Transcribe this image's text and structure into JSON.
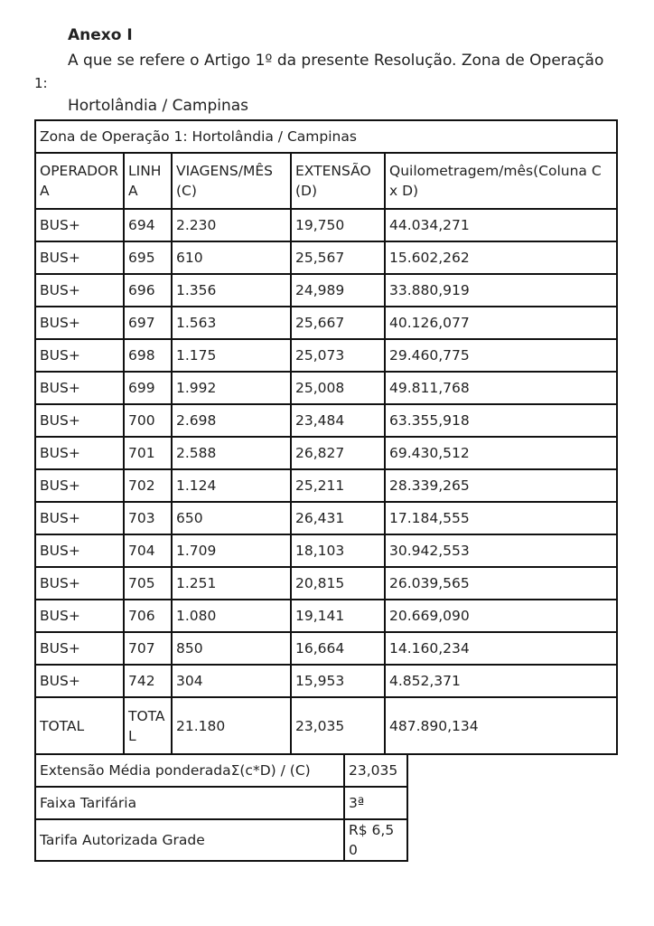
{
  "header": {
    "title": "Anexo I",
    "intro": "A que se refere o Artigo 1º da presente Resolução. Zona de Operação",
    "intro_cont": "1:",
    "subtitle": "Hortolândia / Campinas"
  },
  "table": {
    "caption": "Zona de Operação 1: Hortolândia / Campinas",
    "columns": [
      "OPERADORA",
      "LINHA",
      "VIAGENS/MÊS (C)",
      "EXTENSÃO (D)",
      "Quilometragem/mês(Coluna C x D)"
    ],
    "rows": [
      [
        "BUS+",
        "694",
        "2.230",
        "19,750",
        "44.034,271"
      ],
      [
        "BUS+",
        "695",
        "610",
        "25,567",
        "15.602,262"
      ],
      [
        "BUS+",
        "696",
        "1.356",
        "24,989",
        "33.880,919"
      ],
      [
        "BUS+",
        "697",
        "1.563",
        "25,667",
        "40.126,077"
      ],
      [
        "BUS+",
        "698",
        "1.175",
        "25,073",
        "29.460,775"
      ],
      [
        "BUS+",
        "699",
        "1.992",
        "25,008",
        "49.811,768"
      ],
      [
        "BUS+",
        "700",
        "2.698",
        "23,484",
        "63.355,918"
      ],
      [
        "BUS+",
        "701",
        "2.588",
        "26,827",
        "69.430,512"
      ],
      [
        "BUS+",
        "702",
        "1.124",
        "25,211",
        "28.339,265"
      ],
      [
        "BUS+",
        "703",
        "650",
        "26,431",
        "17.184,555"
      ],
      [
        "BUS+",
        "704",
        "1.709",
        "18,103",
        "30.942,553"
      ],
      [
        "BUS+",
        "705",
        "1.251",
        "20,815",
        "26.039,565"
      ],
      [
        "BUS+",
        "706",
        "1.080",
        "19,141",
        "20.669,090"
      ],
      [
        "BUS+",
        "707",
        "850",
        "16,664",
        "14.160,234"
      ],
      [
        "BUS+",
        "742",
        "304",
        "15,953",
        "4.852,371"
      ],
      [
        "TOTAL",
        "TOTAL",
        "21.180",
        "23,035",
        "487.890,134"
      ]
    ]
  },
  "summary": {
    "rows": [
      [
        "Extensão Média ponderadaΣ(c*D) / (C)",
        "23,035"
      ],
      [
        "Faixa Tarifária",
        "3ª"
      ],
      [
        "Tarifa Autorizada Grade",
        "R$ 6,50"
      ]
    ]
  }
}
